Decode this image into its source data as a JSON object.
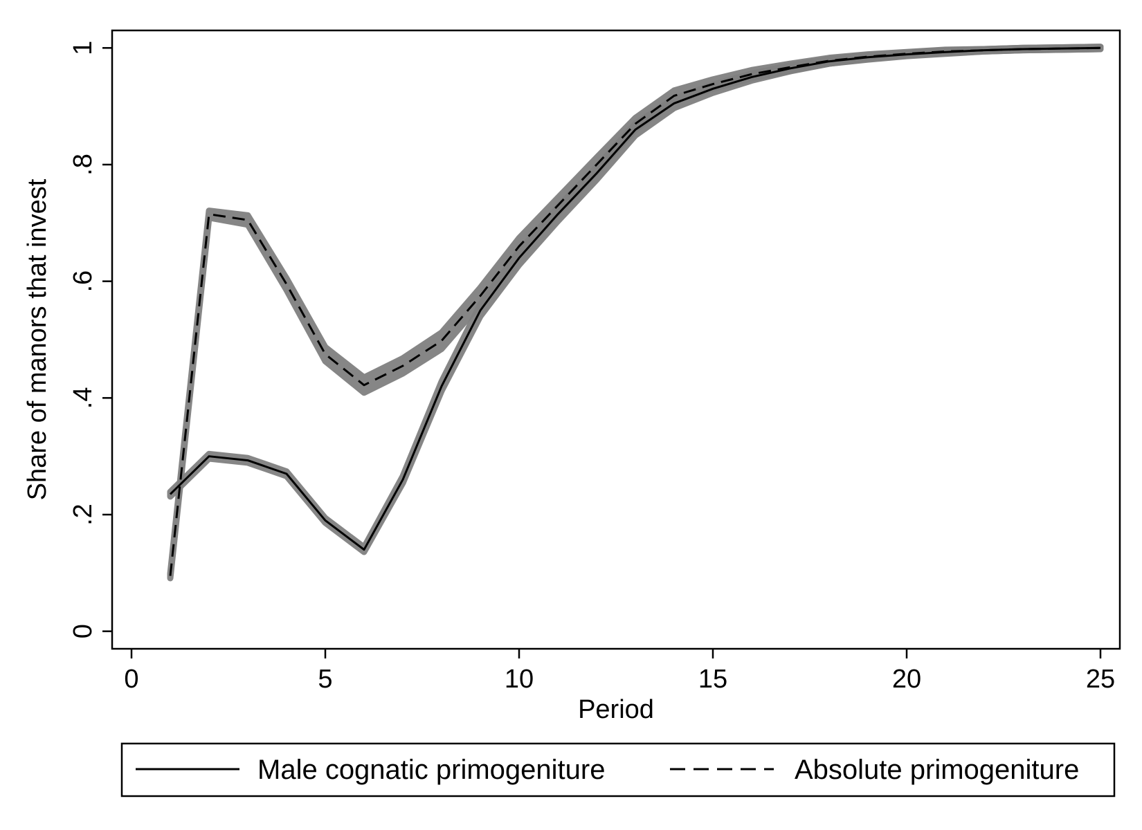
{
  "chart_data": {
    "type": "line",
    "xlabel": "Period",
    "ylabel": "Share of manors that invest",
    "xlim": [
      -0.5,
      25.5
    ],
    "ylim": [
      -0.03,
      1.03
    ],
    "xticks": [
      0,
      5,
      10,
      15,
      20,
      25
    ],
    "xtick_labels": [
      "0",
      "5",
      "10",
      "15",
      "20",
      "25"
    ],
    "yticks": [
      0,
      0.2,
      0.4,
      0.6,
      0.8,
      1
    ],
    "ytick_labels": [
      "0",
      ".2",
      ".4",
      ".6",
      ".8",
      "1"
    ],
    "grid": false,
    "legend_position": "bottom",
    "x": [
      1,
      2,
      3,
      4,
      5,
      6,
      7,
      8,
      9,
      10,
      11,
      12,
      13,
      14,
      15,
      16,
      17,
      18,
      19,
      20,
      21,
      22,
      23,
      24,
      25
    ],
    "series": [
      {
        "name": "Male cognatic primogeniture",
        "style": "solid",
        "color": "#000000",
        "band_color": "#808080",
        "values": [
          0.235,
          0.3,
          0.293,
          0.27,
          0.19,
          0.14,
          0.26,
          0.42,
          0.55,
          0.64,
          0.715,
          0.785,
          0.86,
          0.905,
          0.93,
          0.95,
          0.965,
          0.977,
          0.984,
          0.989,
          0.993,
          0.996,
          0.998,
          0.999,
          1.0
        ],
        "band": [
          0.004,
          0.004,
          0.004,
          0.004,
          0.004,
          0.004,
          0.006,
          0.008,
          0.01,
          0.012,
          0.012,
          0.011,
          0.01,
          0.008,
          0.007,
          0.006,
          0.005,
          0.004,
          0.004,
          0.003,
          0.003,
          0.002,
          0.002,
          0.002,
          0.002
        ]
      },
      {
        "name": "Absolute primogeniture",
        "style": "dashed",
        "color": "#000000",
        "band_color": "#808080",
        "values": [
          0.095,
          0.715,
          0.705,
          0.595,
          0.475,
          0.422,
          0.455,
          0.498,
          0.575,
          0.66,
          0.73,
          0.8,
          0.87,
          0.918,
          0.938,
          0.955,
          0.967,
          0.978,
          0.985,
          0.99,
          0.994,
          0.996,
          0.998,
          0.999,
          1.0
        ],
        "band": [
          0.004,
          0.006,
          0.008,
          0.01,
          0.012,
          0.013,
          0.013,
          0.014,
          0.014,
          0.014,
          0.013,
          0.012,
          0.01,
          0.009,
          0.008,
          0.007,
          0.006,
          0.005,
          0.004,
          0.003,
          0.003,
          0.002,
          0.002,
          0.002,
          0.002
        ]
      }
    ]
  }
}
